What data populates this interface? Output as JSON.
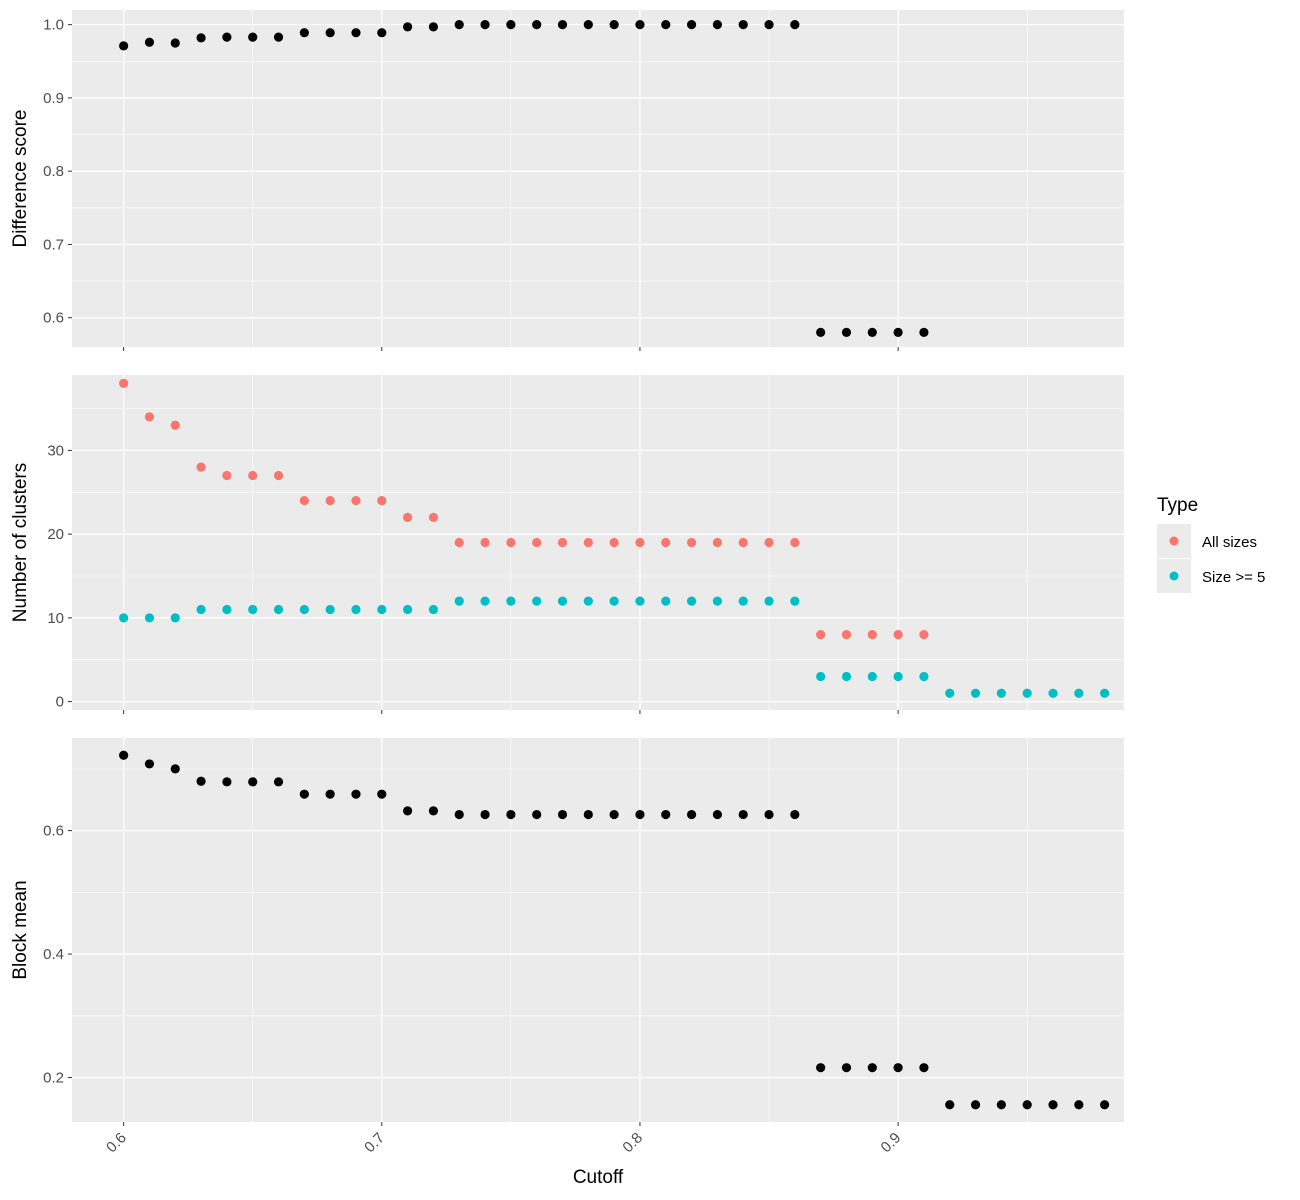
{
  "chart_data": [
    {
      "type": "scatter",
      "panel": "top",
      "xlabel": "",
      "ylabel": "Difference score",
      "ylim": [
        0.56,
        1.02
      ],
      "yticks": [
        0.6,
        0.7,
        0.8,
        0.9,
        1.0
      ],
      "ytick_labels": [
        "0.6",
        "0.7",
        "0.8",
        "0.9",
        "1.0"
      ],
      "xlim": [
        0.58,
        0.9875
      ],
      "xticks": [
        0.6,
        0.7,
        0.8,
        0.9
      ],
      "grid": true,
      "series": [
        {
          "color": "#000000",
          "points": [
            [
              0.6,
              0.971
            ],
            [
              0.61,
              0.976
            ],
            [
              0.62,
              0.975
            ],
            [
              0.63,
              0.982
            ],
            [
              0.64,
              0.983
            ],
            [
              0.65,
              0.983
            ],
            [
              0.66,
              0.983
            ],
            [
              0.67,
              0.989
            ],
            [
              0.68,
              0.989
            ],
            [
              0.69,
              0.989
            ],
            [
              0.7,
              0.989
            ],
            [
              0.71,
              0.997
            ],
            [
              0.72,
              0.997
            ],
            [
              0.73,
              1.0
            ],
            [
              0.74,
              1.0
            ],
            [
              0.75,
              1.0
            ],
            [
              0.76,
              1.0
            ],
            [
              0.77,
              1.0
            ],
            [
              0.78,
              1.0
            ],
            [
              0.79,
              1.0
            ],
            [
              0.8,
              1.0
            ],
            [
              0.81,
              1.0
            ],
            [
              0.82,
              1.0
            ],
            [
              0.83,
              1.0
            ],
            [
              0.84,
              1.0
            ],
            [
              0.85,
              1.0
            ],
            [
              0.86,
              1.0
            ],
            [
              0.87,
              0.58
            ],
            [
              0.88,
              0.58
            ],
            [
              0.89,
              0.58
            ],
            [
              0.9,
              0.58
            ],
            [
              0.91,
              0.58
            ]
          ]
        }
      ]
    },
    {
      "type": "scatter",
      "panel": "middle",
      "xlabel": "",
      "ylabel": "Number of clusters",
      "ylim": [
        -1,
        39
      ],
      "yticks": [
        0,
        10,
        20,
        30
      ],
      "ytick_labels": [
        "0",
        "10",
        "20",
        "30"
      ],
      "xlim": [
        0.58,
        0.9875
      ],
      "xticks": [
        0.6,
        0.7,
        0.8,
        0.9
      ],
      "grid": true,
      "series": [
        {
          "name": "All sizes",
          "color": "#F8766D",
          "points": [
            [
              0.6,
              38
            ],
            [
              0.61,
              34
            ],
            [
              0.62,
              33
            ],
            [
              0.63,
              28
            ],
            [
              0.64,
              27
            ],
            [
              0.65,
              27
            ],
            [
              0.66,
              27
            ],
            [
              0.67,
              24
            ],
            [
              0.68,
              24
            ],
            [
              0.69,
              24
            ],
            [
              0.7,
              24
            ],
            [
              0.71,
              22
            ],
            [
              0.72,
              22
            ],
            [
              0.73,
              19
            ],
            [
              0.74,
              19
            ],
            [
              0.75,
              19
            ],
            [
              0.76,
              19
            ],
            [
              0.77,
              19
            ],
            [
              0.78,
              19
            ],
            [
              0.79,
              19
            ],
            [
              0.8,
              19
            ],
            [
              0.81,
              19
            ],
            [
              0.82,
              19
            ],
            [
              0.83,
              19
            ],
            [
              0.84,
              19
            ],
            [
              0.85,
              19
            ],
            [
              0.86,
              19
            ],
            [
              0.87,
              8
            ],
            [
              0.88,
              8
            ],
            [
              0.89,
              8
            ],
            [
              0.9,
              8
            ],
            [
              0.91,
              8
            ]
          ]
        },
        {
          "name": "Size >= 5",
          "color": "#00BFC4",
          "points": [
            [
              0.6,
              10
            ],
            [
              0.61,
              10
            ],
            [
              0.62,
              10
            ],
            [
              0.63,
              11
            ],
            [
              0.64,
              11
            ],
            [
              0.65,
              11
            ],
            [
              0.66,
              11
            ],
            [
              0.67,
              11
            ],
            [
              0.68,
              11
            ],
            [
              0.69,
              11
            ],
            [
              0.7,
              11
            ],
            [
              0.71,
              11
            ],
            [
              0.72,
              11
            ],
            [
              0.73,
              12
            ],
            [
              0.74,
              12
            ],
            [
              0.75,
              12
            ],
            [
              0.76,
              12
            ],
            [
              0.77,
              12
            ],
            [
              0.78,
              12
            ],
            [
              0.79,
              12
            ],
            [
              0.8,
              12
            ],
            [
              0.81,
              12
            ],
            [
              0.82,
              12
            ],
            [
              0.83,
              12
            ],
            [
              0.84,
              12
            ],
            [
              0.85,
              12
            ],
            [
              0.86,
              12
            ],
            [
              0.87,
              3
            ],
            [
              0.88,
              3
            ],
            [
              0.89,
              3
            ],
            [
              0.9,
              3
            ],
            [
              0.91,
              3
            ],
            [
              0.92,
              1
            ],
            [
              0.93,
              1
            ],
            [
              0.94,
              1
            ],
            [
              0.95,
              1
            ],
            [
              0.96,
              1
            ],
            [
              0.97,
              1
            ],
            [
              0.98,
              1
            ]
          ]
        }
      ]
    },
    {
      "type": "scatter",
      "panel": "bottom",
      "xlabel": "Cutoff",
      "ylabel": "Block mean",
      "ylim": [
        0.128,
        0.75
      ],
      "yticks": [
        0.2,
        0.4,
        0.6
      ],
      "ytick_labels": [
        "0.2",
        "0.4",
        "0.6"
      ],
      "xlim": [
        0.58,
        0.9875
      ],
      "xticks": [
        0.6,
        0.7,
        0.8,
        0.9
      ],
      "xtick_labels": [
        "0.6",
        "0.7",
        "0.8",
        "0.9"
      ],
      "grid": true,
      "series": [
        {
          "color": "#000000",
          "points": [
            [
              0.6,
              0.722
            ],
            [
              0.61,
              0.708
            ],
            [
              0.62,
              0.7
            ],
            [
              0.63,
              0.68
            ],
            [
              0.64,
              0.679
            ],
            [
              0.65,
              0.679
            ],
            [
              0.66,
              0.679
            ],
            [
              0.67,
              0.659
            ],
            [
              0.68,
              0.659
            ],
            [
              0.69,
              0.659
            ],
            [
              0.7,
              0.659
            ],
            [
              0.71,
              0.632
            ],
            [
              0.72,
              0.632
            ],
            [
              0.73,
              0.626
            ],
            [
              0.74,
              0.626
            ],
            [
              0.75,
              0.626
            ],
            [
              0.76,
              0.626
            ],
            [
              0.77,
              0.626
            ],
            [
              0.78,
              0.626
            ],
            [
              0.79,
              0.626
            ],
            [
              0.8,
              0.626
            ],
            [
              0.81,
              0.626
            ],
            [
              0.82,
              0.626
            ],
            [
              0.83,
              0.626
            ],
            [
              0.84,
              0.626
            ],
            [
              0.85,
              0.626
            ],
            [
              0.86,
              0.626
            ],
            [
              0.87,
              0.216
            ],
            [
              0.88,
              0.216
            ],
            [
              0.89,
              0.216
            ],
            [
              0.9,
              0.216
            ],
            [
              0.91,
              0.216
            ],
            [
              0.92,
              0.156
            ],
            [
              0.93,
              0.156
            ],
            [
              0.94,
              0.156
            ],
            [
              0.95,
              0.156
            ],
            [
              0.96,
              0.156
            ],
            [
              0.97,
              0.156
            ],
            [
              0.98,
              0.156
            ]
          ]
        }
      ]
    }
  ],
  "legend": {
    "title": "Type",
    "placement": "right",
    "items": [
      {
        "label": "All sizes",
        "color": "#F8766D"
      },
      {
        "label": "Size >= 5",
        "color": "#00BFC4"
      }
    ]
  },
  "colors": {
    "panel_background": "#EBEBEB",
    "grid": "#FFFFFF",
    "tick": "#333333"
  }
}
